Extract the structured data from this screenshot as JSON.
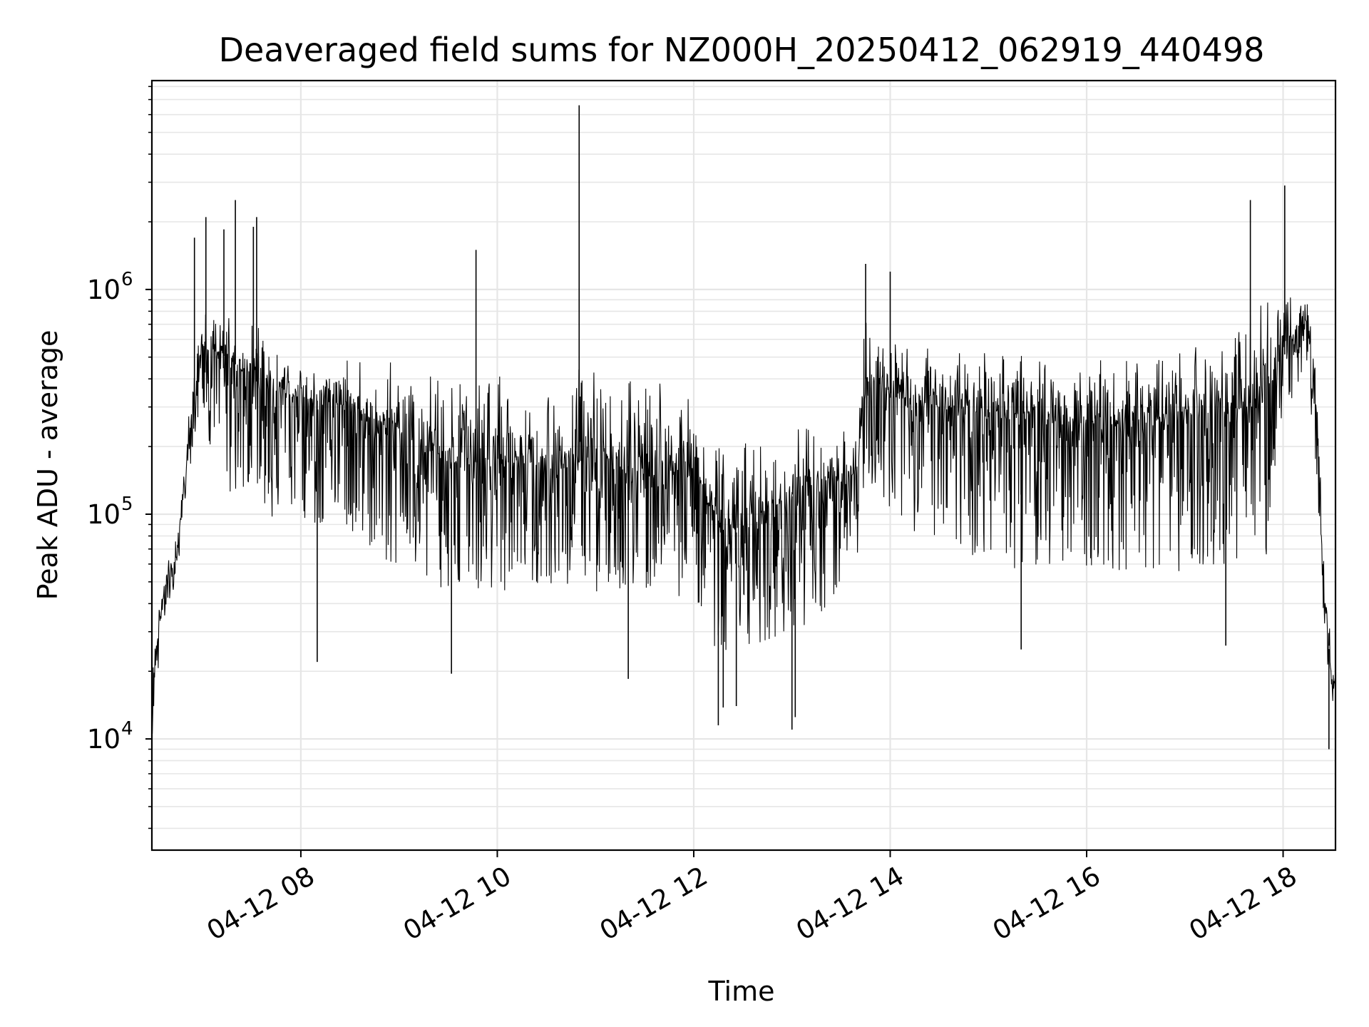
{
  "chart_data": {
    "type": "line",
    "title": "Deaveraged field sums for NZ000H_20250412_062919_440498",
    "xlabel": "Time",
    "ylabel": "Peak ADU - average",
    "yscale": "log",
    "grid": "major+minor",
    "xlim": [
      "2025-04-12 06:29",
      "2025-04-12 18:32"
    ],
    "ylim": [
      3200,
      8500000
    ],
    "x_ticks": [
      {
        "value": "2025-04-12 08:00",
        "label": "04-12 08"
      },
      {
        "value": "2025-04-12 10:00",
        "label": "04-12 10"
      },
      {
        "value": "2025-04-12 12:00",
        "label": "04-12 12"
      },
      {
        "value": "2025-04-12 14:00",
        "label": "04-12 14"
      },
      {
        "value": "2025-04-12 16:00",
        "label": "04-12 16"
      },
      {
        "value": "2025-04-12 18:00",
        "label": "04-12 18"
      }
    ],
    "y_ticks": [
      {
        "value": 10000,
        "base": "10",
        "exp": "4"
      },
      {
        "value": 100000,
        "base": "10",
        "exp": "5"
      },
      {
        "value": 1000000,
        "base": "10",
        "exp": "6"
      }
    ],
    "series_color": "#000000",
    "envelope": {
      "x": [
        "2025-04-12 06:29",
        "2025-04-12 06:35",
        "2025-04-12 06:45",
        "2025-04-12 06:52",
        "2025-04-12 07:00",
        "2025-04-12 07:15",
        "2025-04-12 07:30",
        "2025-04-12 07:45",
        "2025-04-12 08:00",
        "2025-04-12 08:30",
        "2025-04-12 09:00",
        "2025-04-12 09:30",
        "2025-04-12 10:00",
        "2025-04-12 10:30",
        "2025-04-12 11:00",
        "2025-04-12 11:30",
        "2025-04-12 12:00",
        "2025-04-12 12:20",
        "2025-04-12 12:40",
        "2025-04-12 13:00",
        "2025-04-12 13:20",
        "2025-04-12 13:40",
        "2025-04-12 13:45",
        "2025-04-12 14:00",
        "2025-04-12 14:30",
        "2025-04-12 15:00",
        "2025-04-12 15:30",
        "2025-04-12 16:00",
        "2025-04-12 16:30",
        "2025-04-12 17:00",
        "2025-04-12 17:30",
        "2025-04-12 17:50",
        "2025-04-12 18:00",
        "2025-04-12 18:15",
        "2025-04-12 18:20",
        "2025-04-12 18:25",
        "2025-04-12 18:30",
        "2025-04-12 18:32"
      ],
      "median": [
        15000,
        40000,
        70000,
        220000,
        550000,
        500000,
        400000,
        350000,
        330000,
        300000,
        230000,
        170000,
        170000,
        170000,
        170000,
        160000,
        150000,
        80000,
        90000,
        120000,
        130000,
        150000,
        400000,
        330000,
        300000,
        280000,
        260000,
        250000,
        250000,
        260000,
        280000,
        350000,
        500000,
        750000,
        300000,
        45000,
        17000,
        18000
      ],
      "low": [
        10000,
        30000,
        55000,
        160000,
        250000,
        120000,
        100000,
        90000,
        90000,
        80000,
        55000,
        45000,
        45000,
        45000,
        45000,
        45000,
        40000,
        20000,
        25000,
        30000,
        35000,
        60000,
        150000,
        100000,
        70000,
        60000,
        55000,
        55000,
        55000,
        55000,
        60000,
        60000,
        250000,
        400000,
        150000,
        30000,
        12000,
        12000
      ],
      "high": [
        20000,
        50000,
        90000,
        300000,
        900000,
        800000,
        700000,
        550000,
        500000,
        480000,
        450000,
        420000,
        420000,
        420000,
        420000,
        400000,
        380000,
        200000,
        220000,
        260000,
        280000,
        300000,
        1100000,
        600000,
        550000,
        520000,
        520000,
        520000,
        550000,
        600000,
        700000,
        1000000,
        1100000,
        1000000,
        500000,
        60000,
        22000,
        22000
      ]
    },
    "spikes": [
      {
        "x": "2025-04-12 06:55",
        "y": 1700000
      },
      {
        "x": "2025-04-12 07:02",
        "y": 2100000
      },
      {
        "x": "2025-04-12 07:13",
        "y": 1850000
      },
      {
        "x": "2025-04-12 07:20",
        "y": 2500000
      },
      {
        "x": "2025-04-12 07:31",
        "y": 1900000
      },
      {
        "x": "2025-04-12 07:33",
        "y": 2100000
      },
      {
        "x": "2025-04-12 09:47",
        "y": 1500000
      },
      {
        "x": "2025-04-12 10:50",
        "y": 6600000
      },
      {
        "x": "2025-04-12 13:45",
        "y": 1300000
      },
      {
        "x": "2025-04-12 14:00",
        "y": 1200000
      },
      {
        "x": "2025-04-12 17:40",
        "y": 2500000
      },
      {
        "x": "2025-04-12 18:01",
        "y": 2900000
      }
    ],
    "dips": [
      {
        "x": "2025-04-12 06:29",
        "y": 12000
      },
      {
        "x": "2025-04-12 12:15",
        "y": 11500
      },
      {
        "x": "2025-04-12 12:18",
        "y": 13800
      },
      {
        "x": "2025-04-12 12:26",
        "y": 14000
      },
      {
        "x": "2025-04-12 13:00",
        "y": 11000
      },
      {
        "x": "2025-04-12 13:02",
        "y": 12500
      },
      {
        "x": "2025-04-12 08:10",
        "y": 22000
      },
      {
        "x": "2025-04-12 09:32",
        "y": 19500
      },
      {
        "x": "2025-04-12 11:20",
        "y": 18500
      },
      {
        "x": "2025-04-12 15:20",
        "y": 25000
      },
      {
        "x": "2025-04-12 17:25",
        "y": 26000
      },
      {
        "x": "2025-04-12 18:28",
        "y": 9000
      }
    ]
  }
}
